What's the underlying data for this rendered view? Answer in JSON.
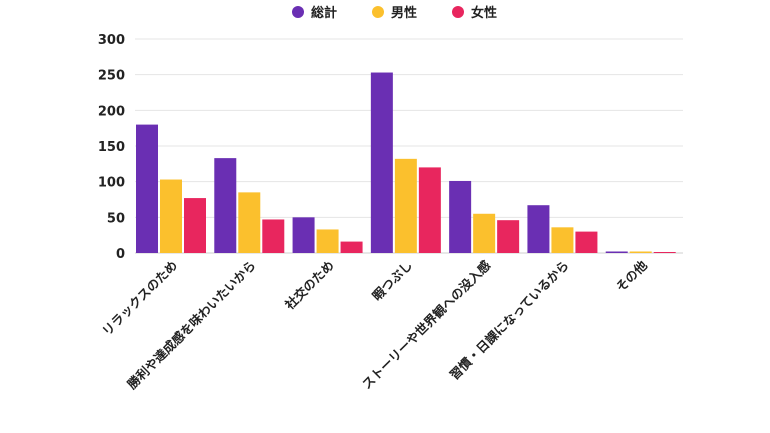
{
  "chart_data": {
    "type": "bar",
    "categories": [
      "リラックスのため",
      "勝利や達成感を味わいたいから",
      "社交のため",
      "暇つぶし",
      "ストーリーや世界観への没入感",
      "習慣・日課になっているから",
      "その他"
    ],
    "series": [
      {
        "name": "総計",
        "color": "#6a2fb3",
        "values": [
          180,
          133,
          50,
          253,
          101,
          67,
          1
        ]
      },
      {
        "name": "男性",
        "color": "#fbc02d",
        "values": [
          103,
          85,
          33,
          132,
          55,
          36,
          1
        ]
      },
      {
        "name": "女性",
        "color": "#e8265e",
        "values": [
          77,
          47,
          16,
          120,
          46,
          30,
          0
        ]
      }
    ],
    "yticks": [
      "0",
      "50",
      "100",
      "150",
      "200",
      "250",
      "300"
    ],
    "ylim": [
      0,
      300
    ],
    "grid": true,
    "legend": "top-center"
  }
}
